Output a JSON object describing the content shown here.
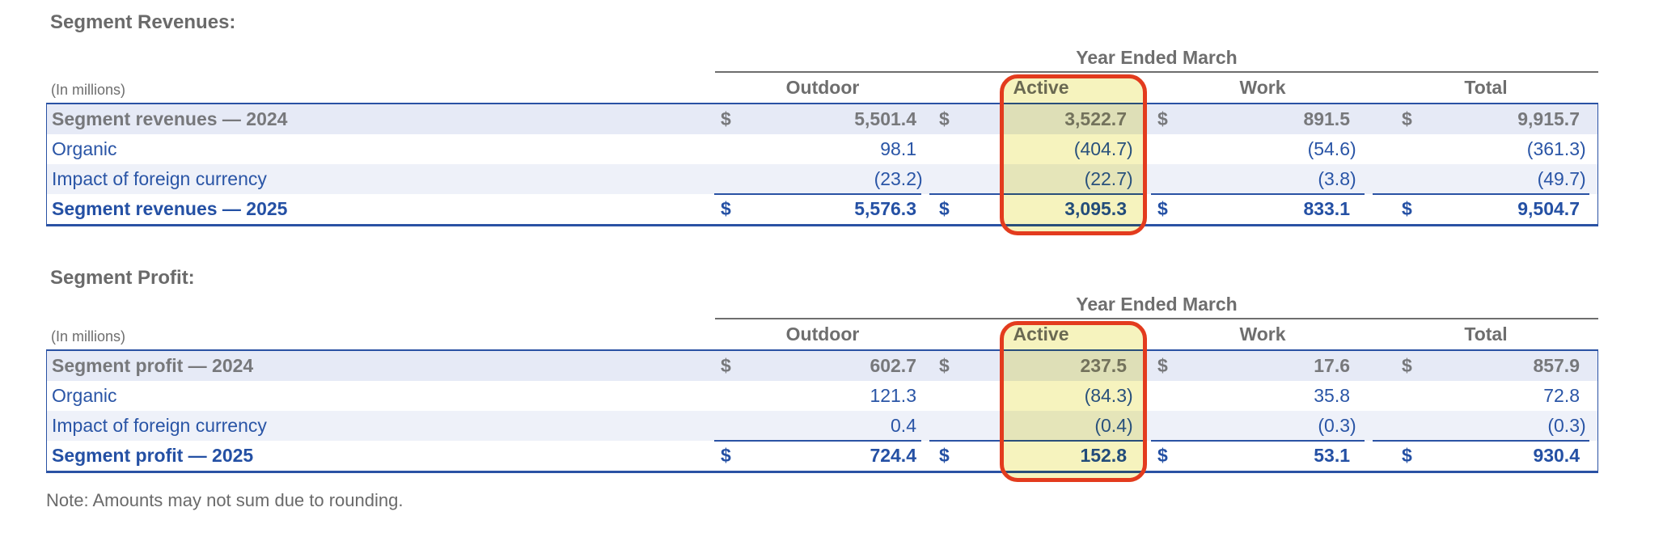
{
  "colors": {
    "gray_title": "#6a6a6a",
    "gray_text": "#6e6e6e",
    "gray_numbers": "#77787b",
    "blue_text": "#2a55a6",
    "blue_bold": "#2450a4",
    "blue_line": "#2a52a4",
    "row_shade_strong": "#e6eaf6",
    "row_shade_light": "#eef1f9"
  },
  "highlight": {
    "column": "Active",
    "fill": "#F6F3BE",
    "border": "#E33B1E"
  },
  "note": "Note: Amounts may not sum due to rounding.",
  "tables": [
    {
      "title": "Segment Revenues:",
      "unit": "(In millions)",
      "period_header": "Year Ended March",
      "columns": [
        "Outdoor",
        "Active",
        "Work",
        "Total"
      ],
      "rows": [
        {
          "label": "Segment revenues — 2024",
          "dollar": true,
          "style": "prior",
          "underline": false,
          "values": [
            "5,501.4",
            "3,522.7",
            "891.5",
            "9,915.7"
          ]
        },
        {
          "label": "Organic",
          "dollar": false,
          "style": "delta",
          "underline": false,
          "values": [
            "98.1",
            "(404.7)",
            "(54.6)",
            "(361.3)"
          ]
        },
        {
          "label": "Impact of foreign currency",
          "dollar": false,
          "style": "delta-shaded",
          "underline": true,
          "values": [
            "(23.2)",
            "(22.7)",
            "(3.8)",
            "(49.7)"
          ]
        },
        {
          "label": "Segment revenues — 2025",
          "dollar": true,
          "style": "current",
          "underline": false,
          "values": [
            "5,576.3",
            "3,095.3",
            "833.1",
            "9,504.7"
          ]
        }
      ]
    },
    {
      "title": "Segment Profit:",
      "unit": "(In millions)",
      "period_header": "Year Ended March",
      "columns": [
        "Outdoor",
        "Active",
        "Work",
        "Total"
      ],
      "rows": [
        {
          "label": "Segment profit — 2024",
          "dollar": true,
          "style": "prior",
          "underline": false,
          "values": [
            "602.7",
            "237.5",
            "17.6",
            "857.9"
          ]
        },
        {
          "label": "Organic",
          "dollar": false,
          "style": "delta",
          "underline": false,
          "values": [
            "121.3",
            "(84.3)",
            "35.8",
            "72.8"
          ]
        },
        {
          "label": "Impact of foreign currency",
          "dollar": false,
          "style": "delta-shaded",
          "underline": true,
          "values": [
            "0.4",
            "(0.4)",
            "(0.3)",
            "(0.3)"
          ]
        },
        {
          "label": "Segment profit — 2025",
          "dollar": true,
          "style": "current",
          "underline": false,
          "values": [
            "724.4",
            "152.8",
            "53.1",
            "930.4"
          ]
        }
      ]
    }
  ]
}
